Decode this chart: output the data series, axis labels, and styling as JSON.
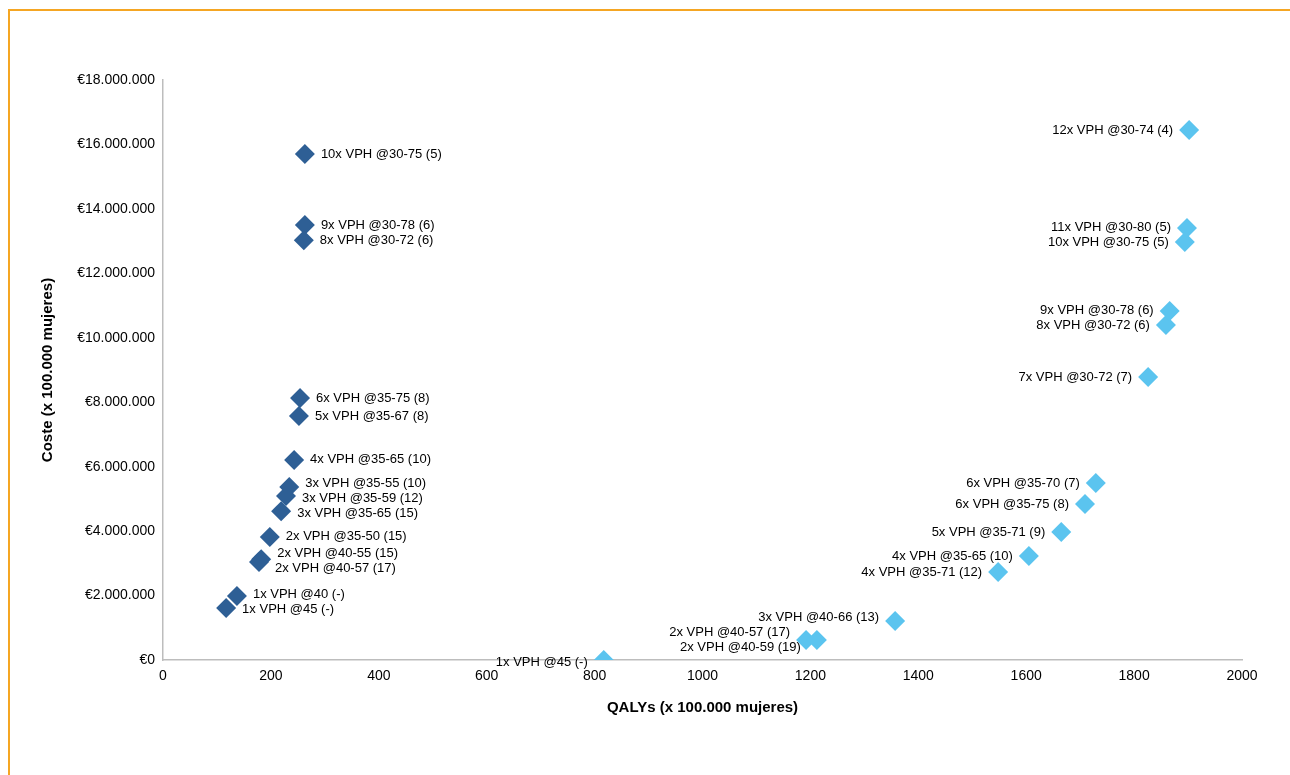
{
  "chart_data": {
    "type": "scatter",
    "xlabel": "QALYs (x 100.000 mujeres)",
    "ylabel": "Coste (x 100.000 mujeres)",
    "xlim": [
      0,
      2000
    ],
    "xticks": [
      0,
      200,
      400,
      600,
      800,
      1000,
      1200,
      1400,
      1600,
      1800,
      2000
    ],
    "ylim": [
      0,
      18000000
    ],
    "yticks": [
      {
        "value": 0,
        "label": "€0"
      },
      {
        "value": 2000000,
        "label": "€2.000.000"
      },
      {
        "value": 4000000,
        "label": "€4.000.000"
      },
      {
        "value": 6000000,
        "label": "€6.000.000"
      },
      {
        "value": 8000000,
        "label": "€8.000.000"
      },
      {
        "value": 10000000,
        "label": "€10.000.000"
      },
      {
        "value": 12000000,
        "label": "€12.000.000"
      },
      {
        "value": 14000000,
        "label": "€14.000.000"
      },
      {
        "value": 16000000,
        "label": "€16.000.000"
      },
      {
        "value": 18000000,
        "label": "€18.000.000"
      }
    ],
    "marker": "diamond",
    "grid": false,
    "legend": false,
    "series": [
      {
        "color": "#2e5f95",
        "x": [
          263,
          263,
          261,
          254,
          252,
          243,
          234,
          228,
          219,
          198,
          182,
          178,
          137,
          117
        ],
        "values": [
          15700000,
          13500000,
          13030000,
          8130000,
          7570000,
          6210000,
          5370000,
          5090000,
          4620000,
          3820000,
          3130000,
          3040000,
          1990000,
          1610000
        ],
        "value_labels": [
          "10x VPH @30-75 (5)",
          "9x VPH @30-78 (6)",
          "8x VPH @30-72 (6)",
          "6x VPH @35-75 (8)",
          "5x VPH @35-67 (8)",
          "4x VPH @35-65 (10)",
          "3x VPH @35-55 (10)",
          "3x VPH @35-59 (12)",
          "3x VPH @35-65 (15)",
          "2x VPH @35-50 (15)",
          "2x VPH @40-55 (15)",
          "2x VPH @40-57 (17)",
          "1x VPH @40 (-)",
          "1x VPH @45 (-)"
        ]
      },
      {
        "color": "#5bc4ef",
        "x": [
          817,
          1192,
          1212,
          1357,
          1548,
          1605,
          1665,
          1709,
          1729,
          1826,
          1859,
          1866,
          1894,
          1898,
          1902
        ],
        "values": [
          0,
          620000,
          620000,
          1210000,
          2730000,
          3230000,
          3970000,
          4840000,
          5490000,
          8780000,
          10400000,
          10830000,
          12970000,
          13410000,
          16450000
        ],
        "value_labels": [
          "1x VPH @45 (-)",
          "2x VPH @40-57 (17)",
          "2x VPH @40-59 (19)",
          "3x VPH @40-66 (13)",
          "4x VPH @35-71 (12)",
          "4x VPH @35-65 (10)",
          "5x VPH @35-71 (9)",
          "6x VPH @35-75 (8)",
          "6x VPH @35-70 (7)",
          "7x VPH @30-72 (7)",
          "8x VPH @30-72 (6)",
          "9x VPH @30-78 (6)",
          "10x VPH @30-75 (5)",
          "11x VPH @30-80 (5)",
          "12x VPH @30-74 (4)"
        ]
      }
    ]
  }
}
